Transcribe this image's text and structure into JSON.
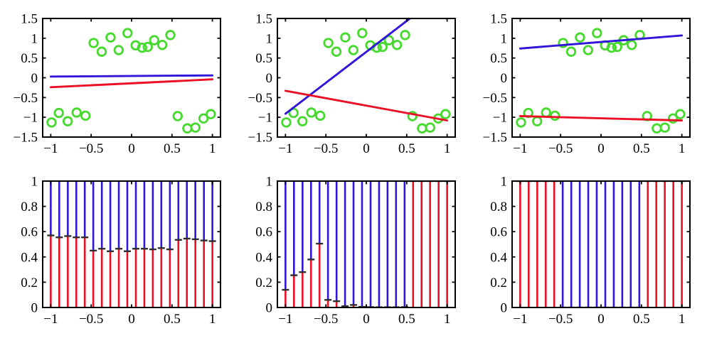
{
  "figure": {
    "background": "#ffffff",
    "rows": 2,
    "cols": 3
  },
  "colors": {
    "blue_expert": "#2f16d9",
    "red_expert": "#ea1026",
    "green_marker": "#46d92e",
    "stem_marker": "#2e2e2e",
    "axis": "#000000"
  },
  "chart_data": [
    {
      "id": "experts-panel-1",
      "type": "scatter",
      "row": 0,
      "col": 0,
      "xlim": [
        -1.1,
        1.1
      ],
      "ylim": [
        -1.5,
        1.5
      ],
      "xticks": [
        -1,
        -0.5,
        0,
        0.5,
        1
      ],
      "xtick_labels": [
        "−1",
        "−0.5",
        "0",
        "0.5",
        "1"
      ],
      "yticks": [
        -1.5,
        -1,
        -0.5,
        0,
        0.5,
        1,
        1.5
      ],
      "ytick_labels": [
        "−1.5",
        "−1",
        "−0.5",
        "0",
        "0.5",
        "1",
        "1.5"
      ],
      "grid": false,
      "legend": null,
      "points": [
        [
          -0.47,
          0.88
        ],
        [
          -0.37,
          0.66
        ],
        [
          -0.26,
          1.02
        ],
        [
          -0.16,
          0.7
        ],
        [
          -0.05,
          1.13
        ],
        [
          0.05,
          0.82
        ],
        [
          0.13,
          0.76
        ],
        [
          0.2,
          0.78
        ],
        [
          0.28,
          0.95
        ],
        [
          0.38,
          0.83
        ],
        [
          0.48,
          1.08
        ],
        [
          -0.99,
          -1.13
        ],
        [
          -0.9,
          -0.89
        ],
        [
          -0.79,
          -1.1
        ],
        [
          -0.68,
          -0.88
        ],
        [
          -0.57,
          -0.96
        ],
        [
          0.57,
          -0.97
        ],
        [
          0.69,
          -1.28
        ],
        [
          0.79,
          -1.26
        ],
        [
          0.89,
          -1.03
        ],
        [
          0.98,
          -0.92
        ]
      ],
      "lines": [
        {
          "name": "blue-expert-line",
          "color": "blue_expert",
          "x1": -1,
          "y1": 0.03,
          "x2": 1,
          "y2": 0.06
        },
        {
          "name": "red-expert-line",
          "color": "red_expert",
          "x1": -1,
          "y1": -0.24,
          "x2": 1,
          "y2": -0.04
        }
      ]
    },
    {
      "id": "experts-panel-2",
      "type": "scatter",
      "row": 0,
      "col": 1,
      "xlim": [
        -1.1,
        1.1
      ],
      "ylim": [
        -1.5,
        1.5
      ],
      "xticks": [
        -1,
        -0.5,
        0,
        0.5,
        1
      ],
      "xtick_labels": [
        "−1",
        "−0.5",
        "0",
        "0.5",
        "1"
      ],
      "yticks": [
        -1.5,
        -1,
        -0.5,
        0,
        0.5,
        1,
        1.5
      ],
      "ytick_labels": [
        "−1.5",
        "−1",
        "−0.5",
        "0",
        "0.5",
        "1",
        "1.5"
      ],
      "grid": false,
      "legend": null,
      "points": [
        [
          -0.47,
          0.88
        ],
        [
          -0.37,
          0.66
        ],
        [
          -0.26,
          1.02
        ],
        [
          -0.16,
          0.7
        ],
        [
          -0.05,
          1.13
        ],
        [
          0.05,
          0.82
        ],
        [
          0.13,
          0.76
        ],
        [
          0.2,
          0.78
        ],
        [
          0.28,
          0.95
        ],
        [
          0.38,
          0.83
        ],
        [
          0.48,
          1.08
        ],
        [
          -0.99,
          -1.13
        ],
        [
          -0.9,
          -0.89
        ],
        [
          -0.79,
          -1.1
        ],
        [
          -0.68,
          -0.88
        ],
        [
          -0.57,
          -0.96
        ],
        [
          0.57,
          -0.97
        ],
        [
          0.69,
          -1.28
        ],
        [
          0.79,
          -1.26
        ],
        [
          0.89,
          -1.03
        ],
        [
          0.98,
          -0.92
        ]
      ],
      "lines": [
        {
          "name": "blue-expert-line",
          "color": "blue_expert",
          "x1": -1,
          "y1": -0.91,
          "x2": 1,
          "y2": 2.22
        },
        {
          "name": "red-expert-line",
          "color": "red_expert",
          "x1": -1,
          "y1": -0.33,
          "x2": 1,
          "y2": -1.08
        }
      ]
    },
    {
      "id": "experts-panel-3",
      "type": "scatter",
      "row": 0,
      "col": 2,
      "xlim": [
        -1.1,
        1.1
      ],
      "ylim": [
        -1.5,
        1.5
      ],
      "xticks": [
        -1,
        -0.5,
        0,
        0.5,
        1
      ],
      "xtick_labels": [
        "−1",
        "−0.5",
        "0",
        "0.5",
        "1"
      ],
      "yticks": [
        -1.5,
        -1,
        -0.5,
        0,
        0.5,
        1,
        1.5
      ],
      "ytick_labels": [
        "−1.5",
        "−1",
        "−0.5",
        "0",
        "0.5",
        "1",
        "1.5"
      ],
      "grid": false,
      "legend": null,
      "points": [
        [
          -0.47,
          0.88
        ],
        [
          -0.37,
          0.66
        ],
        [
          -0.26,
          1.02
        ],
        [
          -0.16,
          0.7
        ],
        [
          -0.05,
          1.13
        ],
        [
          0.05,
          0.82
        ],
        [
          0.13,
          0.76
        ],
        [
          0.2,
          0.78
        ],
        [
          0.28,
          0.95
        ],
        [
          0.38,
          0.83
        ],
        [
          0.48,
          1.08
        ],
        [
          -0.99,
          -1.13
        ],
        [
          -0.9,
          -0.89
        ],
        [
          -0.79,
          -1.1
        ],
        [
          -0.68,
          -0.88
        ],
        [
          -0.57,
          -0.96
        ],
        [
          0.57,
          -0.97
        ],
        [
          0.69,
          -1.28
        ],
        [
          0.79,
          -1.26
        ],
        [
          0.89,
          -1.03
        ],
        [
          0.98,
          -0.92
        ]
      ],
      "lines": [
        {
          "name": "blue-expert-line",
          "color": "blue_expert",
          "x1": -1,
          "y1": 0.74,
          "x2": 1,
          "y2": 1.07
        },
        {
          "name": "red-expert-line",
          "color": "red_expert",
          "x1": -1,
          "y1": -0.97,
          "x2": 1,
          "y2": -1.08
        }
      ]
    },
    {
      "id": "gating-panel-1",
      "type": "stem",
      "row": 1,
      "col": 0,
      "xlim": [
        -1.1,
        1.1
      ],
      "ylim": [
        0,
        1
      ],
      "xticks": [
        -1,
        -0.5,
        0,
        0.5,
        1
      ],
      "xtick_labels": [
        "−1",
        "−0.5",
        "0",
        "0.5",
        "1"
      ],
      "yticks": [
        0,
        0.2,
        0.4,
        0.6,
        0.8,
        1
      ],
      "ytick_labels": [
        "0",
        "0.2",
        "0.4",
        "0.6",
        "0.8",
        "1"
      ],
      "grid": false,
      "legend": null,
      "x": [
        -1,
        -0.895,
        -0.789,
        -0.684,
        -0.579,
        -0.474,
        -0.368,
        -0.263,
        -0.158,
        -0.053,
        0.053,
        0.158,
        0.263,
        0.368,
        0.474,
        0.579,
        0.684,
        0.789,
        0.895,
        1
      ],
      "red_fraction": [
        0.57,
        0.555,
        0.565,
        0.555,
        0.555,
        0.45,
        0.465,
        0.445,
        0.465,
        0.445,
        0.465,
        0.465,
        0.46,
        0.47,
        0.46,
        0.535,
        0.545,
        0.54,
        0.53,
        0.525
      ]
    },
    {
      "id": "gating-panel-2",
      "type": "stem",
      "row": 1,
      "col": 1,
      "xlim": [
        -1.1,
        1.1
      ],
      "ylim": [
        0,
        1
      ],
      "xticks": [
        -1,
        -0.5,
        0,
        0.5,
        1
      ],
      "xtick_labels": [
        "−1",
        "−0.5",
        "0",
        "0.5",
        "1"
      ],
      "yticks": [
        0,
        0.2,
        0.4,
        0.6,
        0.8,
        1
      ],
      "ytick_labels": [
        "0",
        "0.2",
        "0.4",
        "0.6",
        "0.8",
        "1"
      ],
      "grid": false,
      "legend": null,
      "x": [
        -1,
        -0.895,
        -0.789,
        -0.684,
        -0.579,
        -0.474,
        -0.368,
        -0.263,
        -0.158,
        -0.053,
        0.053,
        0.158,
        0.263,
        0.368,
        0.474,
        0.579,
        0.684,
        0.789,
        0.895,
        1
      ],
      "red_fraction": [
        0.14,
        0.255,
        0.28,
        0.38,
        0.505,
        0.06,
        0.05,
        0.01,
        0.02,
        0.005,
        0.003,
        0.002,
        0.002,
        0.002,
        0.003,
        1,
        1,
        1,
        1,
        1
      ]
    },
    {
      "id": "gating-panel-3",
      "type": "stem",
      "row": 1,
      "col": 2,
      "xlim": [
        -1.1,
        1.1
      ],
      "ylim": [
        0,
        1
      ],
      "xticks": [
        -1,
        -0.5,
        0,
        0.5,
        1
      ],
      "xtick_labels": [
        "−1",
        "−0.5",
        "0",
        "0.5",
        "1"
      ],
      "yticks": [
        0,
        0.2,
        0.4,
        0.6,
        0.8,
        1
      ],
      "ytick_labels": [
        "0",
        "0.2",
        "0.4",
        "0.6",
        "0.8",
        "1"
      ],
      "grid": false,
      "legend": null,
      "x": [
        -1,
        -0.895,
        -0.789,
        -0.684,
        -0.579,
        -0.474,
        -0.368,
        -0.263,
        -0.158,
        -0.053,
        0.053,
        0.158,
        0.263,
        0.368,
        0.474,
        0.579,
        0.684,
        0.789,
        0.895,
        1
      ],
      "red_fraction": [
        1,
        1,
        1,
        1,
        1,
        0,
        0,
        0,
        0,
        0,
        0,
        0,
        0,
        0,
        0,
        1,
        1,
        1,
        1,
        1
      ]
    }
  ]
}
